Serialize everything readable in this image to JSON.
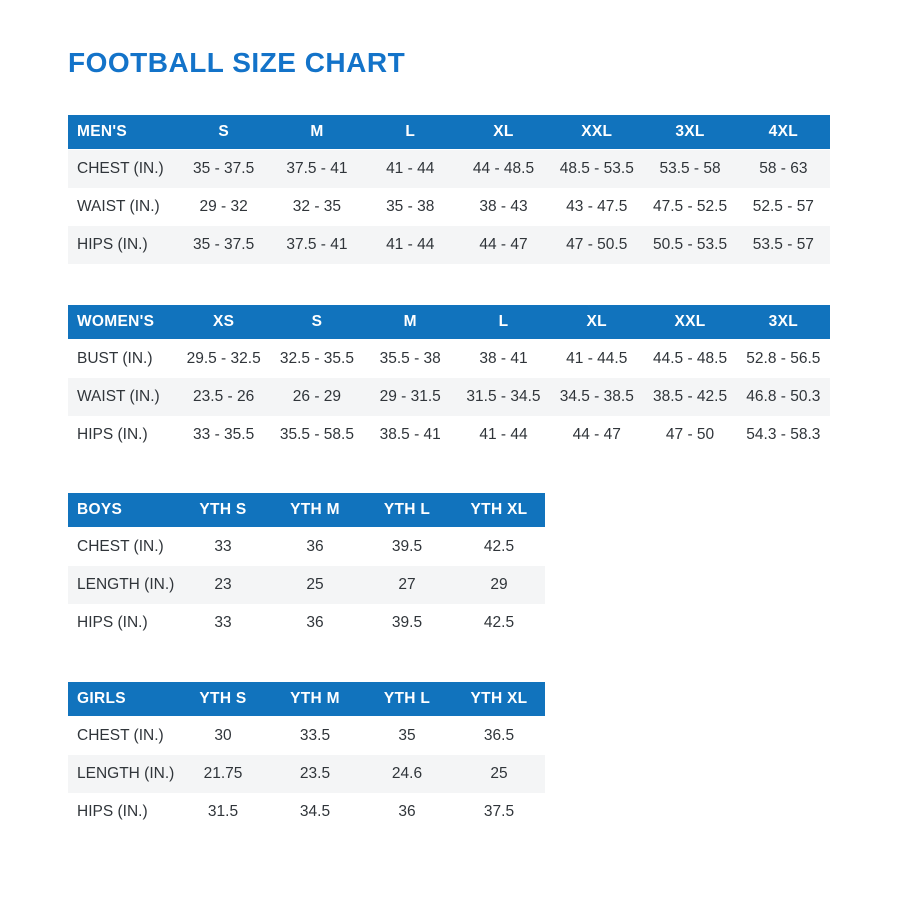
{
  "page": {
    "title": "FOOTBALL SIZE CHART"
  },
  "colors": {
    "title_text": "#1373c9",
    "header_bg": "#1173bd",
    "header_text": "#ffffff",
    "row_stripe_bg": "#f4f5f6",
    "body_text": "#30353a",
    "page_bg": "#ffffff"
  },
  "tables": [
    {
      "key": "mens",
      "name": "MEN'S",
      "columns": [
        "S",
        "M",
        "L",
        "XL",
        "XXL",
        "3XL",
        "4XL"
      ],
      "striped_rows": [
        0,
        2
      ],
      "rows": [
        {
          "label": "CHEST (IN.)",
          "values": [
            "35 - 37.5",
            "37.5 - 41",
            "41 - 44",
            "44 - 48.5",
            "48.5 - 53.5",
            "53.5 - 58",
            "58 - 63"
          ]
        },
        {
          "label": "WAIST (IN.)",
          "values": [
            "29 - 32",
            "32 - 35",
            "35 - 38",
            "38 - 43",
            "43 - 47.5",
            "47.5 - 52.5",
            "52.5 - 57"
          ]
        },
        {
          "label": "HIPS (IN.)",
          "values": [
            "35 - 37.5",
            "37.5 - 41",
            "41 - 44",
            "44 - 47",
            "47 - 50.5",
            "50.5 - 53.5",
            "53.5 - 57"
          ]
        }
      ]
    },
    {
      "key": "womens",
      "name": "WOMEN'S",
      "columns": [
        "XS",
        "S",
        "M",
        "L",
        "XL",
        "XXL",
        "3XL"
      ],
      "striped_rows": [
        1
      ],
      "rows": [
        {
          "label": "BUST (IN.)",
          "values": [
            "29.5 - 32.5",
            "32.5 - 35.5",
            "35.5 - 38",
            "38 - 41",
            "41 - 44.5",
            "44.5 - 48.5",
            "52.8 - 56.5"
          ]
        },
        {
          "label": "WAIST (IN.)",
          "values": [
            "23.5 - 26",
            "26 - 29",
            "29 - 31.5",
            "31.5 - 34.5",
            "34.5 - 38.5",
            "38.5 - 42.5",
            "46.8 - 50.3"
          ]
        },
        {
          "label": "HIPS (IN.)",
          "values": [
            "33 - 35.5",
            "35.5 - 58.5",
            "38.5 - 41",
            "41 - 44",
            "44 - 47",
            "47 - 50",
            "54.3 - 58.3"
          ]
        }
      ]
    },
    {
      "key": "boys",
      "name": "BOYS",
      "columns": [
        "YTH S",
        "YTH M",
        "YTH L",
        "YTH XL"
      ],
      "striped_rows": [
        1
      ],
      "rows": [
        {
          "label": "CHEST (IN.)",
          "values": [
            "33",
            "36",
            "39.5",
            "42.5"
          ]
        },
        {
          "label": "LENGTH (IN.)",
          "values": [
            "23",
            "25",
            "27",
            "29"
          ]
        },
        {
          "label": "HIPS (IN.)",
          "values": [
            "33",
            "36",
            "39.5",
            "42.5"
          ]
        }
      ]
    },
    {
      "key": "girls",
      "name": "GIRLS",
      "columns": [
        "YTH S",
        "YTH M",
        "YTH L",
        "YTH XL"
      ],
      "striped_rows": [
        1
      ],
      "rows": [
        {
          "label": "CHEST (IN.)",
          "values": [
            "30",
            "33.5",
            "35",
            "36.5"
          ]
        },
        {
          "label": "LENGTH (IN.)",
          "values": [
            "21.75",
            "23.5",
            "24.6",
            "25"
          ]
        },
        {
          "label": "HIPS (IN.)",
          "values": [
            "31.5",
            "34.5",
            "36",
            "37.5"
          ]
        }
      ]
    }
  ]
}
